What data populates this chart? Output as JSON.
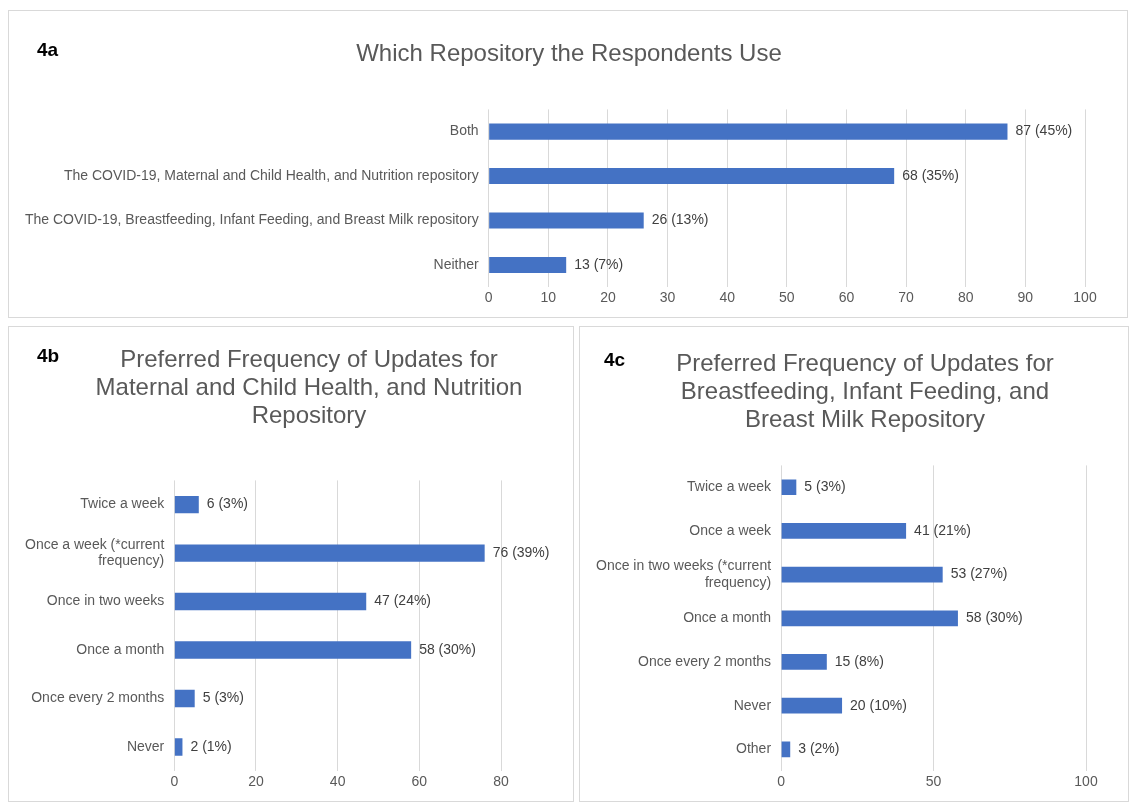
{
  "chart_data": [
    {
      "type": "bar",
      "orientation": "horizontal",
      "title": "Which Repository the Respondents Use",
      "annotations": [
        "4a"
      ],
      "categories": [
        "Both",
        "The COVID-19, Maternal and Child Health, and Nutrition repository",
        "The COVID-19, Breastfeeding, Infant Feeding, and Breast Milk repository",
        "Neither"
      ],
      "values": [
        87,
        68,
        26,
        13
      ],
      "value_labels": [
        "87 (45%)",
        "68 (35%)",
        "26 (13%)",
        "13 (7%)"
      ],
      "color": "#4472c4",
      "xlim": [
        0,
        100
      ],
      "xticks": [
        0,
        10,
        20,
        30,
        40,
        50,
        60,
        70,
        80,
        90,
        100
      ],
      "grid": "x"
    },
    {
      "type": "bar",
      "orientation": "horizontal",
      "title": "Preferred Frequency of Updates for Maternal and Child Health, and Nutrition Repository",
      "annotations": [
        "4b"
      ],
      "categories": [
        "Twice a week",
        "Once a week (*current frequency)",
        "Once in two weeks",
        "Once a month",
        "Once every 2 months",
        "Never"
      ],
      "values": [
        6,
        76,
        47,
        58,
        5,
        2
      ],
      "value_labels": [
        "6 (3%)",
        "76 (39%)",
        "47 (24%)",
        "58 (30%)",
        "5 (3%)",
        "2 (1%)"
      ],
      "color": "#4472c4",
      "xlim": [
        0,
        80
      ],
      "xticks": [
        0,
        20,
        40,
        60,
        80
      ],
      "grid": "x"
    },
    {
      "type": "bar",
      "orientation": "horizontal",
      "title": "Preferred Frequency of Updates for Breastfeeding, Infant Feeding, and Breast Milk Repository",
      "annotations": [
        "4c"
      ],
      "categories": [
        "Twice a week",
        "Once a week",
        "Once in two weeks (*current frequency)",
        "Once a month",
        "Once every 2 months",
        "Never",
        "Other"
      ],
      "values": [
        5,
        41,
        53,
        58,
        15,
        20,
        3
      ],
      "value_labels": [
        "5 (3%)",
        "41 (21%)",
        "53 (27%)",
        "58 (30%)",
        "15 (8%)",
        "20 (10%)",
        "3 (2%)"
      ],
      "color": "#4472c4",
      "xlim": [
        0,
        100
      ],
      "xticks": [
        0,
        50,
        100
      ],
      "grid": "x"
    }
  ]
}
